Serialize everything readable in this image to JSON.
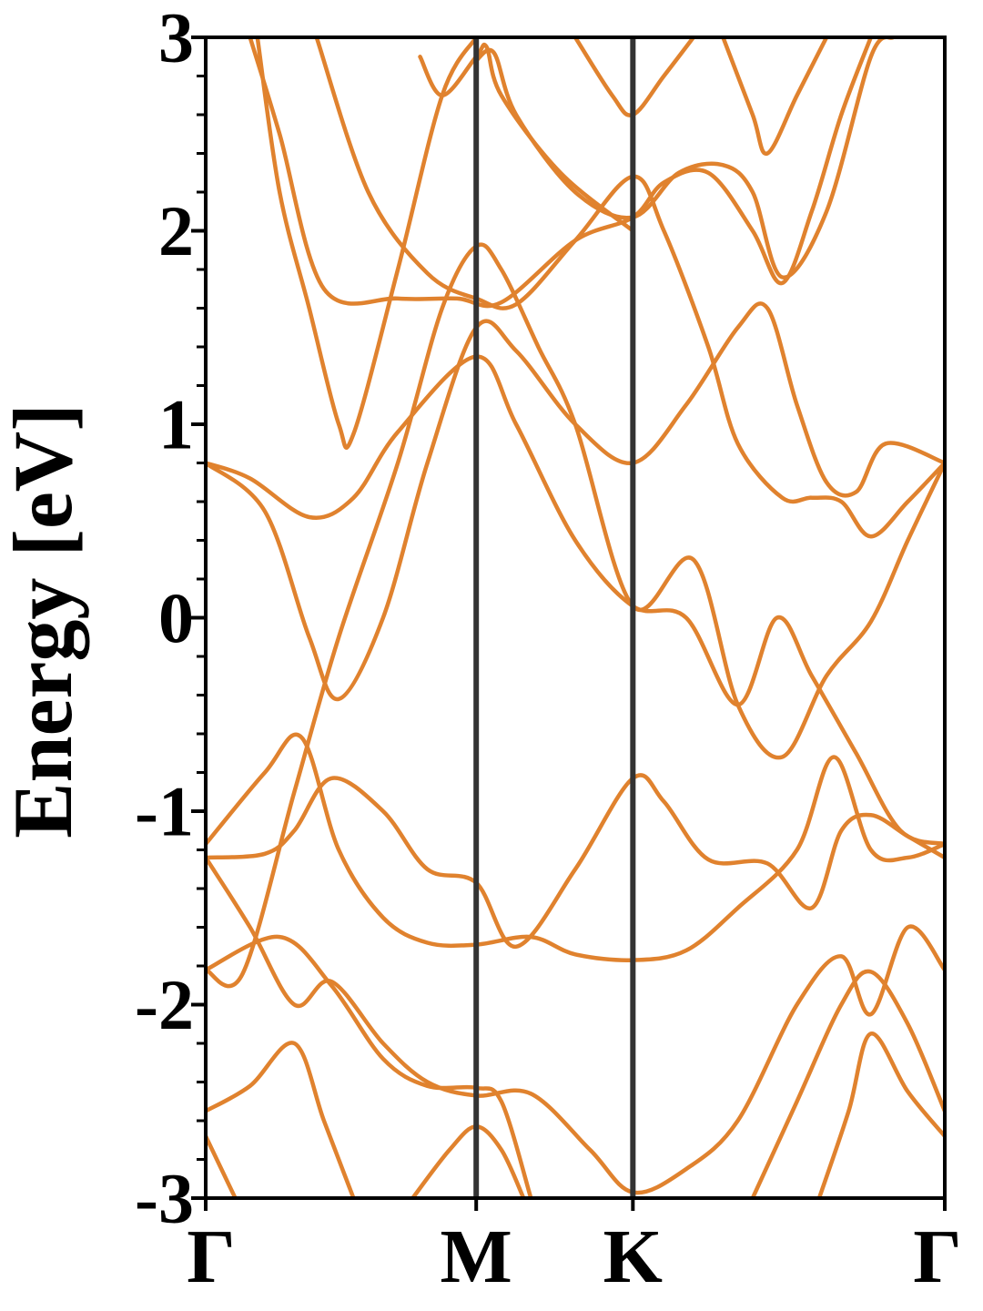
{
  "chart_data": {
    "type": "line",
    "title": "",
    "ylabel": "Energy [eV]",
    "xlabel": "",
    "ylim": [
      -3,
      3
    ],
    "xlim": [
      0,
      1
    ],
    "yticks": [
      {
        "value": -3,
        "label": "-3"
      },
      {
        "value": -2,
        "label": "-2"
      },
      {
        "value": -1,
        "label": "-1"
      },
      {
        "value": 0,
        "label": "0"
      },
      {
        "value": 1,
        "label": "1"
      },
      {
        "value": 2,
        "label": "2"
      },
      {
        "value": 3,
        "label": "3"
      }
    ],
    "high_symmetry_points": [
      {
        "label": "Γ",
        "x": 0.0
      },
      {
        "label": "M",
        "x": 0.366
      },
      {
        "label": "K",
        "x": 0.578
      },
      {
        "label": "Γ",
        "x": 1.0
      }
    ],
    "grid": false,
    "band_color": "#e0822e",
    "vline_color": "#333333",
    "series": [
      {
        "values": [
          [
            0.0,
            0.8
          ],
          [
            0.06,
            0.72
          ],
          [
            0.14,
            0.52
          ],
          [
            0.2,
            0.62
          ],
          [
            0.26,
            0.96
          ],
          [
            0.366,
            1.35
          ],
          [
            0.42,
            1.0
          ],
          [
            0.5,
            0.4
          ],
          [
            0.578,
            0.06
          ],
          [
            0.65,
            0.0
          ],
          [
            0.72,
            -0.45
          ],
          [
            0.773,
            0.0
          ],
          [
            0.82,
            -0.3
          ],
          [
            0.88,
            -0.7
          ],
          [
            0.94,
            -1.1
          ],
          [
            1.0,
            -1.17
          ]
        ]
      },
      {
        "values": [
          [
            0.0,
            0.8
          ],
          [
            0.08,
            0.55
          ],
          [
            0.14,
            -0.1
          ],
          [
            0.18,
            -0.42
          ],
          [
            0.24,
            0.0
          ],
          [
            0.3,
            0.8
          ],
          [
            0.366,
            1.5
          ],
          [
            0.42,
            1.38
          ],
          [
            0.5,
            1.0
          ],
          [
            0.578,
            0.8
          ],
          [
            0.65,
            1.1
          ],
          [
            0.72,
            1.5
          ],
          [
            0.76,
            1.6
          ],
          [
            0.8,
            1.1
          ],
          [
            0.84,
            0.7
          ],
          [
            0.88,
            0.65
          ],
          [
            0.92,
            0.9
          ],
          [
            1.0,
            0.8
          ]
        ]
      },
      {
        "values": [
          [
            0.0,
            -1.17
          ],
          [
            0.08,
            -0.8
          ],
          [
            0.13,
            -0.62
          ],
          [
            0.18,
            -1.2
          ],
          [
            0.24,
            -1.55
          ],
          [
            0.3,
            -1.68
          ],
          [
            0.366,
            -1.69
          ],
          [
            0.44,
            -1.65
          ],
          [
            0.5,
            -1.74
          ],
          [
            0.578,
            -1.77
          ],
          [
            0.65,
            -1.72
          ],
          [
            0.72,
            -1.5
          ],
          [
            0.8,
            -1.2
          ],
          [
            0.85,
            -0.72
          ],
          [
            0.9,
            -1.2
          ],
          [
            0.95,
            -1.24
          ],
          [
            1.0,
            -1.17
          ]
        ]
      },
      {
        "values": [
          [
            0.0,
            -1.24
          ],
          [
            0.08,
            -1.22
          ],
          [
            0.12,
            -1.1
          ],
          [
            0.17,
            -0.83
          ],
          [
            0.24,
            -1.0
          ],
          [
            0.3,
            -1.3
          ],
          [
            0.366,
            -1.37
          ],
          [
            0.42,
            -1.7
          ],
          [
            0.5,
            -1.3
          ],
          [
            0.578,
            -0.83
          ],
          [
            0.62,
            -0.95
          ],
          [
            0.68,
            -1.25
          ],
          [
            0.76,
            -1.27
          ],
          [
            0.82,
            -1.5
          ],
          [
            0.86,
            -1.1
          ],
          [
            0.9,
            -1.02
          ],
          [
            0.95,
            -1.13
          ],
          [
            1.0,
            -1.24
          ]
        ]
      },
      {
        "values": [
          [
            0.0,
            -1.24
          ],
          [
            0.06,
            -1.6
          ],
          [
            0.12,
            -2.0
          ],
          [
            0.17,
            -1.88
          ],
          [
            0.24,
            -2.2
          ],
          [
            0.3,
            -2.4
          ],
          [
            0.366,
            -2.47
          ],
          [
            0.44,
            -2.46
          ],
          [
            0.52,
            -2.75
          ],
          [
            0.578,
            -2.97
          ],
          [
            0.65,
            -2.85
          ],
          [
            0.72,
            -2.6
          ],
          [
            0.8,
            -2.0
          ],
          [
            0.86,
            -1.75
          ],
          [
            0.9,
            -2.05
          ],
          [
            0.95,
            -1.6
          ],
          [
            1.0,
            -1.82
          ]
        ]
      },
      {
        "values": [
          [
            0.0,
            -1.82
          ],
          [
            0.1,
            -1.65
          ],
          [
            0.17,
            -1.9
          ],
          [
            0.24,
            -2.28
          ],
          [
            0.3,
            -2.42
          ],
          [
            0.366,
            -2.43
          ],
          [
            0.4,
            -2.5
          ],
          [
            0.44,
            -3.0
          ]
        ]
      },
      {
        "values": [
          [
            0.0,
            -2.55
          ],
          [
            0.06,
            -2.42
          ],
          [
            0.12,
            -2.2
          ],
          [
            0.16,
            -2.6
          ],
          [
            0.2,
            -3.0
          ]
        ]
      },
      {
        "values": [
          [
            0.0,
            -2.68
          ],
          [
            0.04,
            -3.0
          ]
        ]
      },
      {
        "values": [
          [
            0.28,
            -3.0
          ],
          [
            0.33,
            -2.75
          ],
          [
            0.366,
            -2.63
          ],
          [
            0.4,
            -2.75
          ],
          [
            0.43,
            -3.0
          ]
        ]
      },
      {
        "values": [
          [
            0.74,
            -3.0
          ],
          [
            0.8,
            -2.5
          ],
          [
            0.86,
            -2.0
          ],
          [
            0.9,
            -1.83
          ],
          [
            0.95,
            -2.1
          ],
          [
            1.0,
            -2.55
          ]
        ]
      },
      {
        "values": [
          [
            0.83,
            -3.0
          ],
          [
            0.87,
            -2.55
          ],
          [
            0.9,
            -2.15
          ],
          [
            0.95,
            -2.45
          ],
          [
            1.0,
            -2.68
          ]
        ]
      },
      {
        "values": [
          [
            0.0,
            -1.82
          ],
          [
            0.05,
            -1.84
          ],
          [
            0.12,
            -0.9
          ],
          [
            0.18,
            -0.1
          ],
          [
            0.26,
            0.8
          ],
          [
            0.32,
            1.6
          ],
          [
            0.366,
            1.92
          ],
          [
            0.4,
            1.8
          ],
          [
            0.45,
            1.4
          ],
          [
            0.5,
            1.0
          ],
          [
            0.578,
            0.06
          ],
          [
            0.66,
            0.3
          ],
          [
            0.72,
            -0.45
          ],
          [
            0.78,
            -0.72
          ],
          [
            0.84,
            -0.3
          ],
          [
            0.9,
            -0.02
          ],
          [
            0.95,
            0.4
          ],
          [
            1.0,
            0.8
          ]
        ]
      },
      {
        "values": [
          [
            0.07,
            3.0
          ],
          [
            0.1,
            2.2
          ],
          [
            0.14,
            1.6
          ],
          [
            0.18,
            1.0
          ],
          [
            0.2,
            0.95
          ],
          [
            0.26,
            1.8
          ],
          [
            0.32,
            2.7
          ],
          [
            0.366,
            3.0
          ]
        ]
      },
      {
        "values": [
          [
            0.06,
            3.0
          ],
          [
            0.1,
            2.5
          ],
          [
            0.16,
            1.7
          ],
          [
            0.26,
            1.65
          ],
          [
            0.34,
            1.65
          ],
          [
            0.4,
            1.63
          ],
          [
            0.5,
            1.95
          ],
          [
            0.578,
            2.07
          ],
          [
            0.62,
            2.25
          ],
          [
            0.68,
            2.3
          ],
          [
            0.74,
            2.0
          ],
          [
            0.78,
            1.73
          ],
          [
            0.82,
            2.1
          ],
          [
            0.86,
            2.6
          ],
          [
            0.9,
            3.0
          ]
        ]
      },
      {
        "values": [
          [
            0.15,
            3.0
          ],
          [
            0.22,
            2.2
          ],
          [
            0.3,
            1.78
          ],
          [
            0.366,
            1.65
          ],
          [
            0.42,
            1.62
          ],
          [
            0.5,
            1.95
          ],
          [
            0.578,
            2.28
          ],
          [
            0.62,
            2.0
          ],
          [
            0.68,
            1.4
          ],
          [
            0.72,
            0.9
          ],
          [
            0.78,
            0.62
          ],
          [
            0.82,
            0.62
          ],
          [
            0.86,
            0.6
          ],
          [
            0.9,
            0.42
          ],
          [
            0.95,
            0.6
          ],
          [
            1.0,
            0.8
          ]
        ]
      },
      {
        "values": [
          [
            0.366,
            2.88
          ],
          [
            0.39,
            2.92
          ],
          [
            0.42,
            2.6
          ],
          [
            0.5,
            2.2
          ],
          [
            0.578,
            2.07
          ],
          [
            0.64,
            2.3
          ],
          [
            0.7,
            2.34
          ],
          [
            0.74,
            2.2
          ],
          [
            0.78,
            1.76
          ],
          [
            0.84,
            2.1
          ],
          [
            0.9,
            2.9
          ],
          [
            0.93,
            3.0
          ]
        ]
      },
      {
        "values": [
          [
            0.5,
            3.0
          ],
          [
            0.55,
            2.7
          ],
          [
            0.578,
            2.6
          ],
          [
            0.62,
            2.8
          ],
          [
            0.66,
            3.0
          ]
        ]
      },
      {
        "values": [
          [
            0.7,
            3.0
          ],
          [
            0.74,
            2.6
          ],
          [
            0.76,
            2.4
          ],
          [
            0.8,
            2.7
          ],
          [
            0.84,
            3.0
          ]
        ]
      },
      {
        "values": [
          [
            0.29,
            2.9
          ],
          [
            0.32,
            2.7
          ],
          [
            0.366,
            2.9
          ],
          [
            0.38,
            2.95
          ],
          [
            0.4,
            2.7
          ],
          [
            0.48,
            2.3
          ],
          [
            0.578,
            2.0
          ]
        ]
      }
    ]
  }
}
